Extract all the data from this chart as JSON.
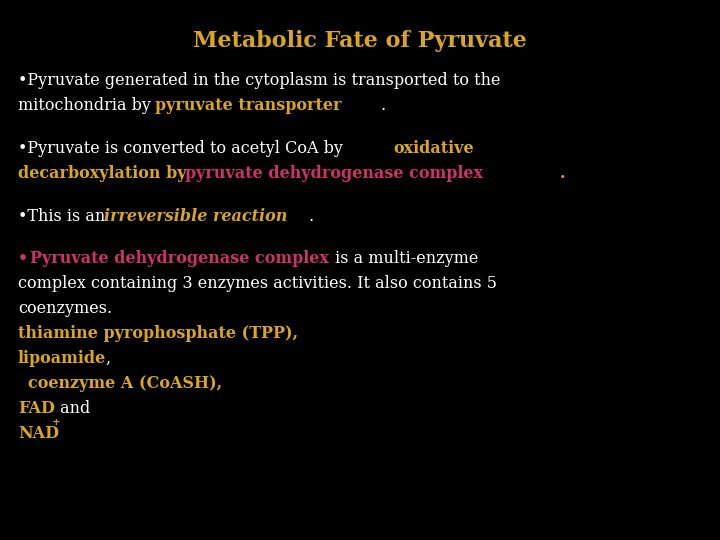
{
  "title": "Metabolic Fate of Pyruvate",
  "title_color": "#DAA520",
  "background_color": "#000000",
  "white": "#FFFFFF",
  "gold": "#DAA520",
  "pink": "#CC3366",
  "figsize": [
    7.2,
    5.4
  ],
  "dpi": 100,
  "title_fs": 16,
  "body_fs": 11.5
}
